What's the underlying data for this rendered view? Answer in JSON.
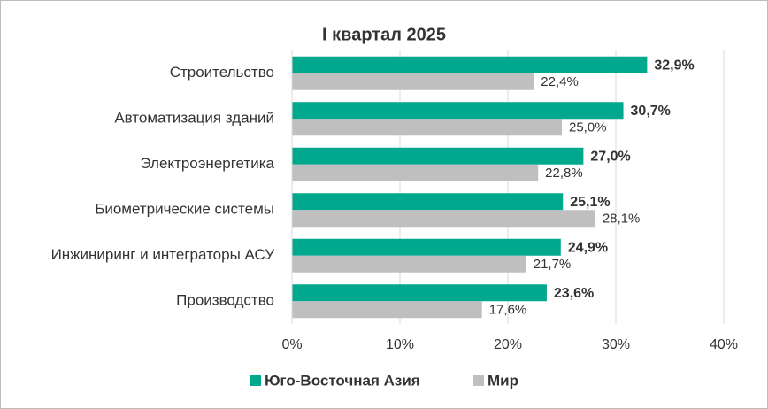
{
  "chart_data": {
    "type": "bar",
    "title": "I квартал 2025",
    "categories": [
      "Строительство",
      "Автоматизация зданий",
      "Электроэнергетика",
      "Биометрические системы",
      "Инжиниринг и интеграторы АСУ",
      "Производство"
    ],
    "series": [
      {
        "name": "Юго-Восточная Азия",
        "color": "#00a88e",
        "values": [
          32.9,
          30.7,
          27.0,
          25.1,
          24.9,
          23.6
        ],
        "value_labels": [
          "32,9%",
          "30,7%",
          "27,0%",
          "25,1%",
          "24,9%",
          "23,6%"
        ]
      },
      {
        "name": "Мир",
        "color": "#bfbfbf",
        "values": [
          22.4,
          25.0,
          22.8,
          28.1,
          21.7,
          17.6
        ],
        "value_labels": [
          "22,4%",
          "25,0%",
          "22,8%",
          "28,1%",
          "21,7%",
          "17,6%"
        ]
      }
    ],
    "xlim": [
      0,
      40
    ],
    "xticks": [
      {
        "value": 0,
        "label": "0%"
      },
      {
        "value": 10,
        "label": "10%"
      },
      {
        "value": 20,
        "label": "20%"
      },
      {
        "value": 30,
        "label": "30%"
      },
      {
        "value": 40,
        "label": "40%"
      }
    ],
    "grid": true,
    "legend": "bottom"
  }
}
